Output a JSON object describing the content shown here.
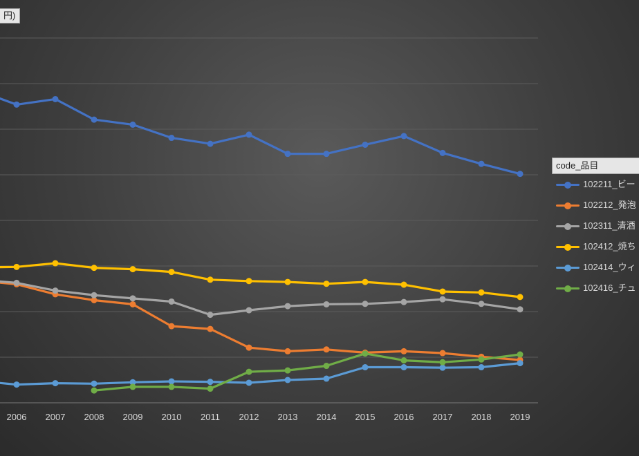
{
  "chart_data": {
    "type": "line",
    "title": "",
    "unit_label": "円)",
    "legend_title": "code_品目",
    "legend_position": "right",
    "x": [
      "2006",
      "2007",
      "2008",
      "2009",
      "2010",
      "2011",
      "2012",
      "2013",
      "2014",
      "2015",
      "2016",
      "2017",
      "2018",
      "2019"
    ],
    "ylim": [
      0,
      8
    ],
    "grid": true,
    "series": [
      {
        "name": "102211_ビー",
        "color": "#4472c4",
        "values": [
          6.54,
          6.66,
          6.21,
          6.1,
          5.81,
          5.68,
          5.88,
          5.46,
          5.46,
          5.66,
          5.85,
          5.48,
          5.24,
          5.02
        ]
      },
      {
        "name": "102212_発泡",
        "color": "#ed7d31",
        "values": [
          2.6,
          2.38,
          2.25,
          2.16,
          1.68,
          1.62,
          1.21,
          1.13,
          1.17,
          1.1,
          1.13,
          1.09,
          1.01,
          0.94
        ]
      },
      {
        "name": "102311_清酒",
        "color": "#a5a5a5",
        "values": [
          2.63,
          2.46,
          2.36,
          2.29,
          2.22,
          1.93,
          2.03,
          2.12,
          2.16,
          2.17,
          2.21,
          2.27,
          2.17,
          2.05
        ]
      },
      {
        "name": "102412_焼ち",
        "color": "#ffc000",
        "values": [
          2.98,
          3.06,
          2.96,
          2.93,
          2.87,
          2.7,
          2.67,
          2.65,
          2.61,
          2.65,
          2.59,
          2.44,
          2.42,
          2.32
        ]
      },
      {
        "name": "102414_ウィ",
        "color": "#5b9bd5",
        "values": [
          0.4,
          0.43,
          0.42,
          0.45,
          0.47,
          0.46,
          0.44,
          0.5,
          0.53,
          0.78,
          0.78,
          0.77,
          0.78,
          0.87
        ]
      },
      {
        "name": "102416_チュ",
        "color": "#70ad47",
        "values": [
          null,
          null,
          0.27,
          0.35,
          0.35,
          0.31,
          0.68,
          0.71,
          0.81,
          1.08,
          0.93,
          0.89,
          0.95,
          1.06
        ]
      }
    ],
    "left_partial": {
      "102211": 6.85,
      "102212": 2.68,
      "102311": 2.7,
      "102412": 2.97,
      "102414": 0.48
    }
  }
}
